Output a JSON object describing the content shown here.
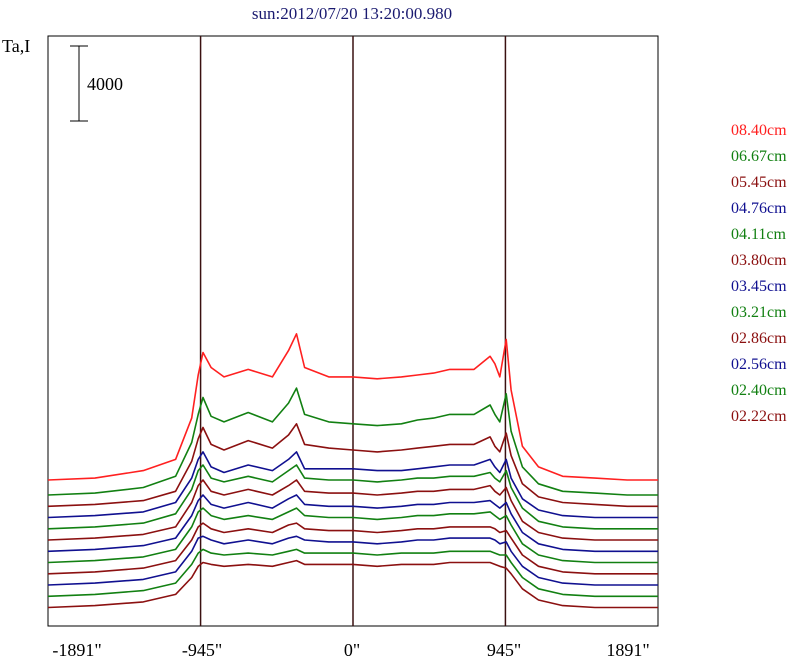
{
  "chart_data": {
    "type": "line",
    "title": "sun:2012/07/20 13:20:00.980",
    "ylabel": "Ta,I",
    "scale_bar": {
      "label": "4000",
      "value": 4000
    },
    "x_ticks": [
      "-1891\"",
      "-945\"",
      "0\"",
      "945\"",
      "1891\""
    ],
    "x_tick_values": [
      -1891,
      -945,
      0,
      945,
      1891
    ],
    "xlim": [
      -1891,
      1891
    ],
    "vertical_lines": [
      -945,
      0,
      945
    ],
    "grid": false,
    "legend_position": "right",
    "x": [
      -1891,
      -1600,
      -1300,
      -1100,
      -1000,
      -960,
      -930,
      -880,
      -800,
      -650,
      -500,
      -400,
      -350,
      -300,
      -150,
      0,
      150,
      300,
      400,
      500,
      600,
      750,
      850,
      880,
      910,
      950,
      980,
      1050,
      1150,
      1300,
      1500,
      1700,
      1891
    ],
    "series": [
      {
        "name": "08.40cm",
        "color": "#ff2020",
        "values": [
          11200,
          11300,
          11700,
          12300,
          14500,
          16800,
          18000,
          17200,
          16700,
          17100,
          16700,
          18100,
          19000,
          17200,
          16700,
          16700,
          16600,
          16700,
          16800,
          16900,
          17100,
          17100,
          17800,
          17400,
          16700,
          18700,
          16000,
          13000,
          11900,
          11400,
          11300,
          11200,
          11200
        ]
      },
      {
        "name": "06.67cm",
        "color": "#128012",
        "values": [
          10400,
          10500,
          10800,
          11400,
          13200,
          14700,
          15600,
          14600,
          14300,
          14800,
          14300,
          15300,
          16100,
          14700,
          14300,
          14200,
          14100,
          14200,
          14400,
          14500,
          14700,
          14700,
          15200,
          14700,
          14300,
          15800,
          13800,
          11900,
          11000,
          10600,
          10500,
          10400,
          10400
        ]
      },
      {
        "name": "05.45cm",
        "color": "#8b1010",
        "values": [
          9800,
          9900,
          10100,
          10600,
          12200,
          13400,
          14000,
          13100,
          12800,
          13300,
          12900,
          13600,
          14200,
          13100,
          12900,
          12800,
          12700,
          12800,
          12900,
          13000,
          13100,
          13100,
          13500,
          13000,
          12700,
          13700,
          12500,
          11000,
          10300,
          10000,
          9900,
          9800,
          9800
        ]
      },
      {
        "name": "04.76cm",
        "color": "#101090",
        "values": [
          9200,
          9300,
          9500,
          10000,
          11300,
          12300,
          12700,
          11900,
          11600,
          12000,
          11700,
          12300,
          12700,
          11800,
          11800,
          11800,
          11700,
          11700,
          11800,
          11900,
          12000,
          12000,
          12300,
          11900,
          11600,
          12300,
          11300,
          10200,
          9600,
          9300,
          9200,
          9200,
          9200
        ]
      },
      {
        "name": "04.11cm",
        "color": "#128012",
        "values": [
          8600,
          8700,
          8900,
          9400,
          10700,
          11700,
          12000,
          11300,
          11100,
          11400,
          11100,
          11700,
          12000,
          11300,
          11200,
          11200,
          11100,
          11200,
          11300,
          11300,
          11400,
          11400,
          11600,
          11300,
          11100,
          11700,
          10800,
          9700,
          9000,
          8700,
          8600,
          8600,
          8600
        ]
      },
      {
        "name": "03.80cm",
        "color": "#8b1010",
        "values": [
          8000,
          8100,
          8300,
          8700,
          10000,
          10900,
          11200,
          10600,
          10400,
          10700,
          10400,
          10900,
          11200,
          10600,
          10500,
          10500,
          10400,
          10500,
          10600,
          10600,
          10700,
          10700,
          10900,
          10600,
          10400,
          10800,
          10100,
          9000,
          8400,
          8100,
          8000,
          8000,
          8000
        ]
      },
      {
        "name": "03.45cm",
        "color": "#101090",
        "values": [
          7400,
          7500,
          7700,
          8100,
          9300,
          10100,
          10400,
          9900,
          9700,
          10000,
          9700,
          10200,
          10400,
          9900,
          9800,
          9800,
          9700,
          9800,
          9900,
          9900,
          10000,
          10000,
          10100,
          9900,
          9700,
          10000,
          9400,
          8400,
          7800,
          7500,
          7400,
          7400,
          7400
        ]
      },
      {
        "name": "03.21cm",
        "color": "#128012",
        "values": [
          6800,
          6900,
          7100,
          7500,
          8700,
          9500,
          9700,
          9300,
          9100,
          9300,
          9100,
          9500,
          9700,
          9300,
          9200,
          9200,
          9100,
          9200,
          9300,
          9300,
          9400,
          9400,
          9500,
          9300,
          9100,
          9300,
          8800,
          7800,
          7200,
          6900,
          6800,
          6800,
          6800
        ]
      },
      {
        "name": "02.86cm",
        "color": "#8b1010",
        "values": [
          6200,
          6300,
          6500,
          6900,
          8000,
          8700,
          8900,
          8600,
          8400,
          8600,
          8400,
          8800,
          8900,
          8600,
          8500,
          8500,
          8400,
          8500,
          8600,
          8600,
          8700,
          8700,
          8700,
          8600,
          8400,
          8500,
          8100,
          7200,
          6600,
          6300,
          6200,
          6200,
          6200
        ]
      },
      {
        "name": "02.56cm",
        "color": "#101090",
        "values": [
          5600,
          5700,
          5900,
          6300,
          7400,
          8100,
          8200,
          8000,
          7800,
          8000,
          7800,
          8100,
          8200,
          8000,
          7900,
          7900,
          7800,
          7900,
          8000,
          8000,
          8100,
          8100,
          8100,
          8000,
          7800,
          7900,
          7400,
          6600,
          6000,
          5700,
          5600,
          5600,
          5600
        ]
      },
      {
        "name": "02.40cm",
        "color": "#128012",
        "values": [
          5000,
          5100,
          5300,
          5700,
          6700,
          7300,
          7500,
          7300,
          7200,
          7300,
          7200,
          7400,
          7500,
          7300,
          7300,
          7300,
          7200,
          7300,
          7300,
          7300,
          7400,
          7400,
          7400,
          7300,
          7200,
          7200,
          6800,
          6000,
          5400,
          5100,
          5000,
          5000,
          5000
        ]
      },
      {
        "name": "02.22cm",
        "color": "#8b1010",
        "values": [
          4400,
          4500,
          4700,
          5100,
          6000,
          6600,
          6800,
          6700,
          6600,
          6700,
          6600,
          6800,
          6900,
          6700,
          6700,
          6700,
          6600,
          6700,
          6700,
          6700,
          6800,
          6800,
          6800,
          6700,
          6600,
          6500,
          6200,
          5400,
          4800,
          4500,
          4400,
          4400,
          4400
        ]
      }
    ]
  }
}
